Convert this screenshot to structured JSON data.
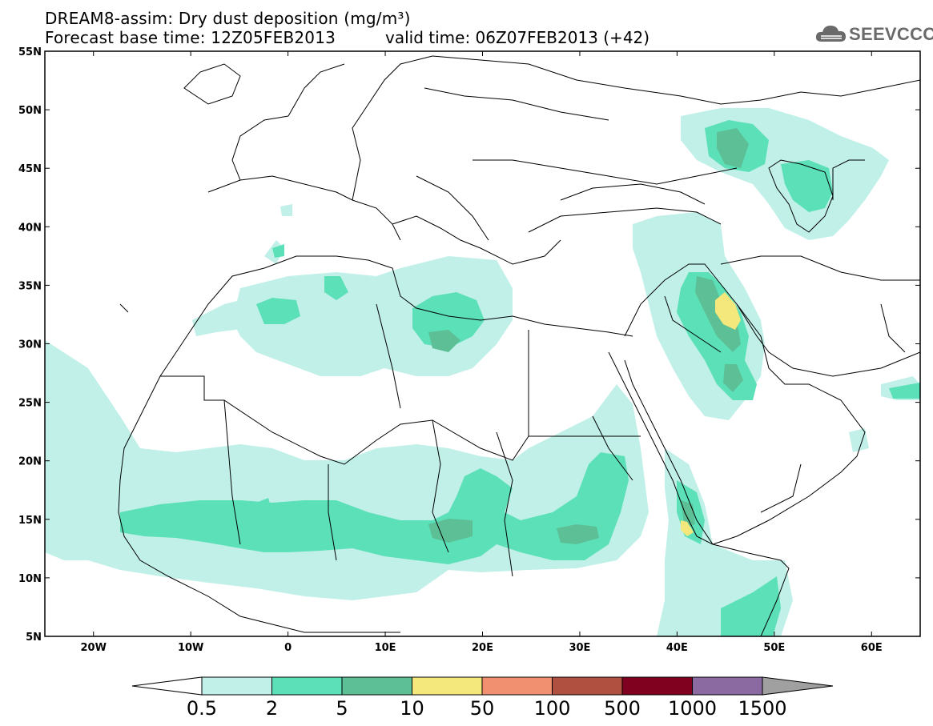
{
  "title": {
    "line1": "DREAM8-assim: Dry dust deposition (mg/m³)",
    "line2": "Forecast base time: 12Z05FEB2013",
    "valid": "valid time: 06Z07FEB2013 (+42)"
  },
  "logo": {
    "text": "SEEVCCC",
    "icon": "cloud-icon"
  },
  "map": {
    "region": "North Africa, Europe and Middle East",
    "lat_ticks": [
      "55N",
      "50N",
      "45N",
      "40N",
      "35N",
      "30N",
      "25N",
      "20N",
      "15N",
      "10N",
      "5N"
    ],
    "lon_ticks": [
      "20W",
      "10W",
      "0",
      "10E",
      "20E",
      "30E",
      "40E",
      "50E",
      "60E"
    ],
    "lat_range": [
      5,
      55
    ],
    "lon_range": [
      -25,
      65
    ]
  },
  "legend": {
    "labels": [
      "0.5",
      "2",
      "5",
      "10",
      "50",
      "100",
      "500",
      "1000",
      "1500"
    ],
    "colors": [
      "#c0f0e8",
      "#5ce0b8",
      "#5cbf96",
      "#f4e87c",
      "#f09070",
      "#b05040",
      "#800020",
      "#8a6aa0",
      "#a0a0a0"
    ],
    "left_arrow_color": "#ffffff"
  }
}
